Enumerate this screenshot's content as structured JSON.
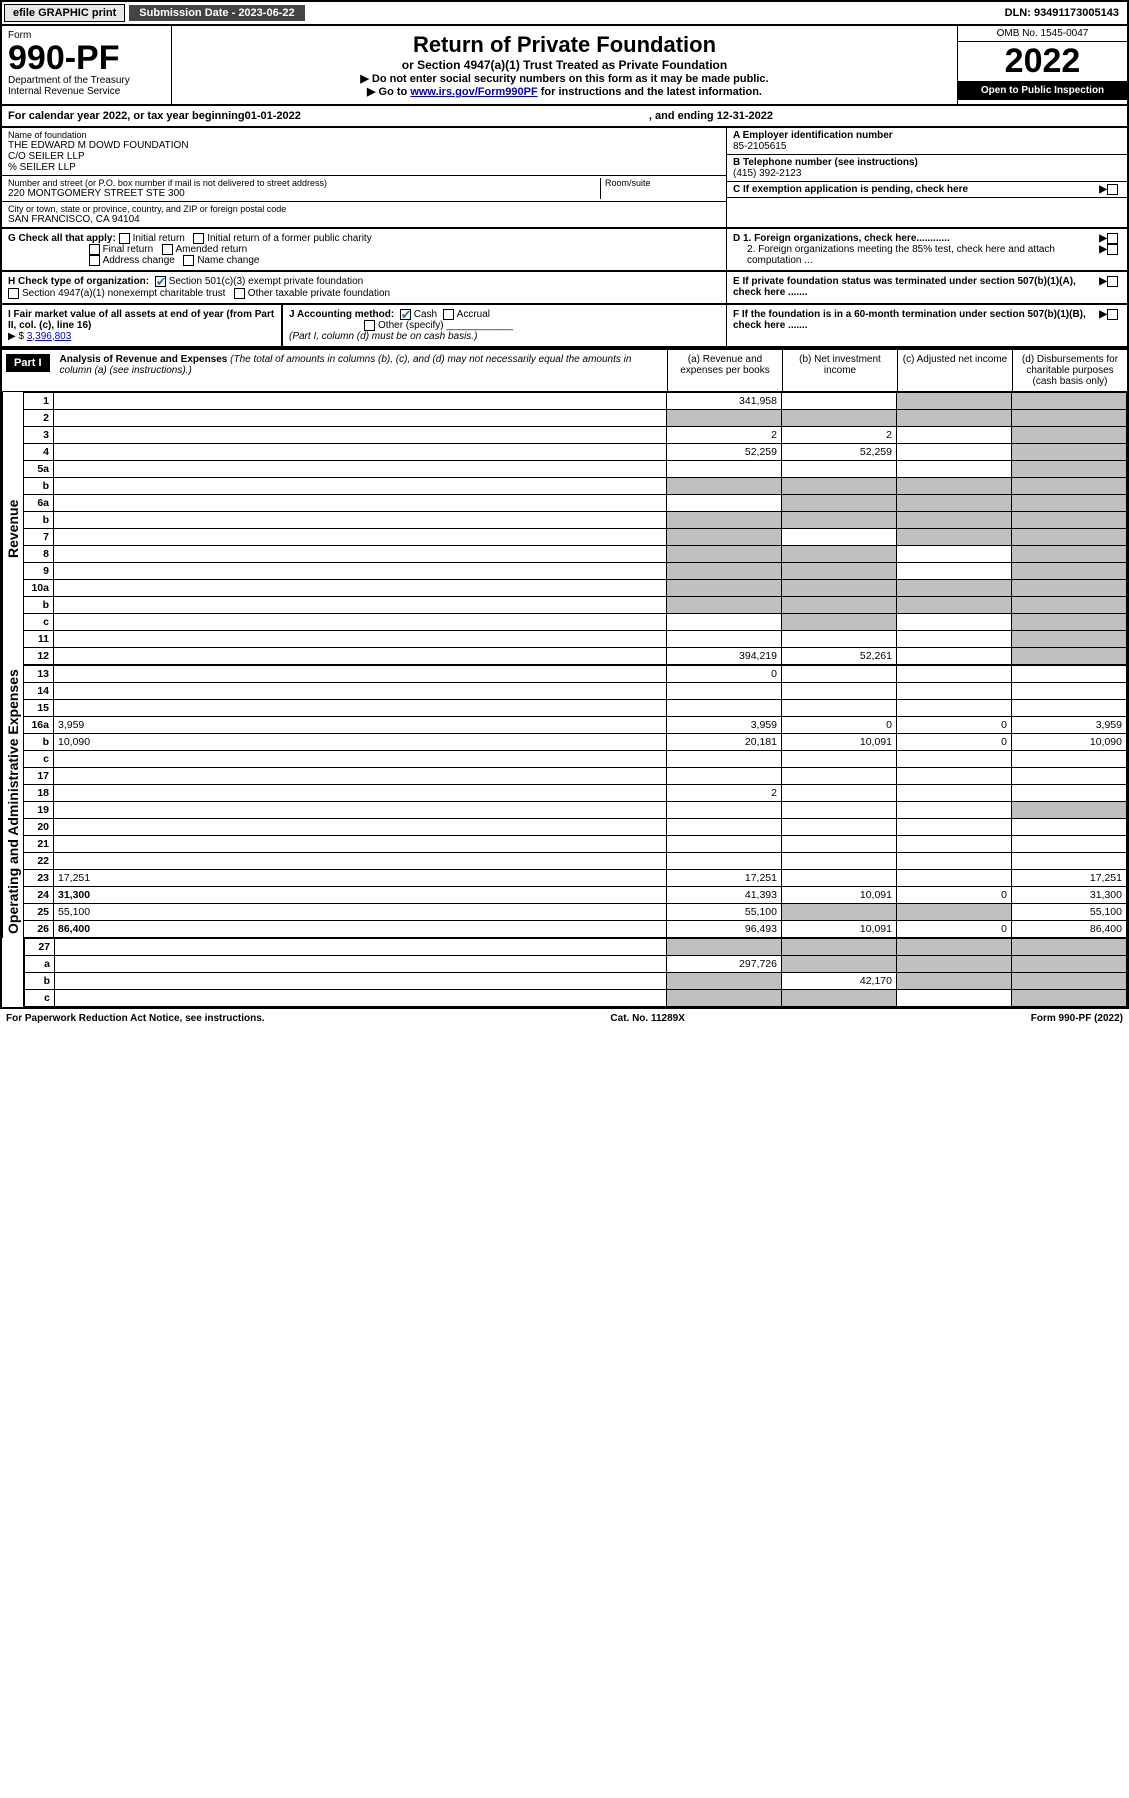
{
  "colors": {
    "black": "#000000",
    "white": "#ffffff",
    "grey_fill": "#bfbfbf",
    "button_bg": "#e8e8e8",
    "dark_bg": "#444444",
    "link": "#0000cc",
    "check_blue": "#2e6db0"
  },
  "topbar": {
    "efile": "efile GRAPHIC print",
    "submission": "Submission Date - 2023-06-22",
    "dln": "DLN: 93491173005143"
  },
  "header": {
    "form_word": "Form",
    "form_number": "990-PF",
    "dept1": "Department of the Treasury",
    "dept2": "Internal Revenue Service",
    "title": "Return of Private Foundation",
    "subtitle": "or Section 4947(a)(1) Trust Treated as Private Foundation",
    "instr1": "▶ Do not enter social security numbers on this form as it may be made public.",
    "instr2_pre": "▶ Go to ",
    "instr2_link": "www.irs.gov/Form990PF",
    "instr2_post": " for instructions and the latest information.",
    "omb": "OMB No. 1545-0047",
    "year": "2022",
    "open": "Open to Public Inspection"
  },
  "cal_year": {
    "prefix": "For calendar year 2022, or tax year beginning ",
    "begin": "01-01-2022",
    "mid": ", and ending ",
    "end": "12-31-2022"
  },
  "info": {
    "name_label": "Name of foundation",
    "name1": "THE EDWARD M DOWD FOUNDATION",
    "name2": "C/O SEILER LLP",
    "name3": "% SEILER LLP",
    "addr_label": "Number and street (or P.O. box number if mail is not delivered to street address)",
    "addr": "220 MONTGOMERY STREET STE 300",
    "room_label": "Room/suite",
    "city_label": "City or town, state or province, country, and ZIP or foreign postal code",
    "city": "SAN FRANCISCO, CA  94104",
    "a_label": "A Employer identification number",
    "a_val": "85-2105615",
    "b_label": "B Telephone number (see instructions)",
    "b_val": "(415) 392-2123",
    "c_label": "C If exemption application is pending, check here"
  },
  "g": {
    "label": "G Check all that apply:",
    "opts": [
      "Initial return",
      "Final return",
      "Address change",
      "Initial return of a former public charity",
      "Amended return",
      "Name change"
    ]
  },
  "d": {
    "d1": "D 1. Foreign organizations, check here............",
    "d2": "2. Foreign organizations meeting the 85% test, check here and attach computation ..."
  },
  "h": {
    "label": "H Check type of organization:",
    "opt1": "Section 501(c)(3) exempt private foundation",
    "opt2": "Section 4947(a)(1) nonexempt charitable trust",
    "opt3": "Other taxable private foundation"
  },
  "e": {
    "text": "E  If private foundation status was terminated under section 507(b)(1)(A), check here ......."
  },
  "i": {
    "label": "I Fair market value of all assets at end of year (from Part II, col. (c), line 16)",
    "arrow": "▶ $",
    "val": "3,396,803"
  },
  "j": {
    "label": "J Accounting method:",
    "cash": "Cash",
    "accrual": "Accrual",
    "other": "Other (specify)",
    "note": "(Part I, column (d) must be on cash basis.)"
  },
  "f": {
    "text": "F  If the foundation is in a 60-month termination under section 507(b)(1)(B), check here ......."
  },
  "part1": {
    "tag": "Part I",
    "title": "Analysis of Revenue and Expenses",
    "title_note": "(The total of amounts in columns (b), (c), and (d) may not necessarily equal the amounts in column (a) (see instructions).)",
    "cols": {
      "a": "(a)  Revenue and expenses per books",
      "b": "(b)  Net investment income",
      "c": "(c)  Adjusted net income",
      "d": "(d)  Disbursements for charitable purposes (cash basis only)"
    }
  },
  "vlabels": {
    "revenue": "Revenue",
    "expenses": "Operating and Administrative Expenses"
  },
  "rows": [
    {
      "n": "1",
      "d": "",
      "a": "341,958",
      "b": "",
      "c": "",
      "grey": [
        "c",
        "d"
      ]
    },
    {
      "n": "2",
      "d": "",
      "a": "",
      "b": "",
      "c": "",
      "grey": [
        "a",
        "b",
        "c",
        "d"
      ]
    },
    {
      "n": "3",
      "d": "",
      "a": "2",
      "b": "2",
      "c": "",
      "grey": [
        "d"
      ]
    },
    {
      "n": "4",
      "d": "",
      "a": "52,259",
      "b": "52,259",
      "c": "",
      "grey": [
        "d"
      ]
    },
    {
      "n": "5a",
      "d": "",
      "a": "",
      "b": "",
      "c": "",
      "grey": [
        "d"
      ]
    },
    {
      "n": "b",
      "d": "",
      "a": "",
      "b": "",
      "c": "",
      "grey": [
        "a",
        "b",
        "c",
        "d"
      ]
    },
    {
      "n": "6a",
      "d": "",
      "a": "",
      "b": "",
      "c": "",
      "grey": [
        "b",
        "c",
        "d"
      ]
    },
    {
      "n": "b",
      "d": "",
      "a": "",
      "b": "",
      "c": "",
      "grey": [
        "a",
        "b",
        "c",
        "d"
      ]
    },
    {
      "n": "7",
      "d": "",
      "a": "",
      "b": "",
      "c": "",
      "grey": [
        "a",
        "c",
        "d"
      ]
    },
    {
      "n": "8",
      "d": "",
      "a": "",
      "b": "",
      "c": "",
      "grey": [
        "a",
        "b",
        "d"
      ]
    },
    {
      "n": "9",
      "d": "",
      "a": "",
      "b": "",
      "c": "",
      "grey": [
        "a",
        "b",
        "d"
      ]
    },
    {
      "n": "10a",
      "d": "",
      "a": "",
      "b": "",
      "c": "",
      "grey": [
        "a",
        "b",
        "c",
        "d"
      ]
    },
    {
      "n": "b",
      "d": "",
      "a": "",
      "b": "",
      "c": "",
      "grey": [
        "a",
        "b",
        "c",
        "d"
      ]
    },
    {
      "n": "c",
      "d": "",
      "a": "",
      "b": "",
      "c": "",
      "grey": [
        "b",
        "d"
      ]
    },
    {
      "n": "11",
      "d": "",
      "a": "",
      "b": "",
      "c": "",
      "grey": [
        "d"
      ]
    },
    {
      "n": "12",
      "d": "",
      "bold": true,
      "a": "394,219",
      "b": "52,261",
      "c": "",
      "grey": [
        "d"
      ]
    }
  ],
  "exp_rows": [
    {
      "n": "13",
      "d": "",
      "a": "0",
      "b": "",
      "c": ""
    },
    {
      "n": "14",
      "d": "",
      "a": "",
      "b": "",
      "c": ""
    },
    {
      "n": "15",
      "d": "",
      "a": "",
      "b": "",
      "c": ""
    },
    {
      "n": "16a",
      "d": "3,959",
      "a": "3,959",
      "b": "0",
      "c": "0"
    },
    {
      "n": "b",
      "d": "10,090",
      "a": "20,181",
      "b": "10,091",
      "c": "0"
    },
    {
      "n": "c",
      "d": "",
      "a": "",
      "b": "",
      "c": ""
    },
    {
      "n": "17",
      "d": "",
      "a": "",
      "b": "",
      "c": ""
    },
    {
      "n": "18",
      "d": "",
      "a": "2",
      "b": "",
      "c": ""
    },
    {
      "n": "19",
      "d": "",
      "a": "",
      "b": "",
      "c": "",
      "grey": [
        "d"
      ]
    },
    {
      "n": "20",
      "d": "",
      "a": "",
      "b": "",
      "c": ""
    },
    {
      "n": "21",
      "d": "",
      "a": "",
      "b": "",
      "c": ""
    },
    {
      "n": "22",
      "d": "",
      "a": "",
      "b": "",
      "c": ""
    },
    {
      "n": "23",
      "d": "17,251",
      "a": "17,251",
      "b": "",
      "c": ""
    },
    {
      "n": "24",
      "d": "31,300",
      "bold": true,
      "a": "41,393",
      "b": "10,091",
      "c": "0"
    },
    {
      "n": "25",
      "d": "55,100",
      "a": "55,100",
      "b": "",
      "c": "",
      "grey": [
        "b",
        "c"
      ]
    },
    {
      "n": "26",
      "d": "86,400",
      "bold": true,
      "a": "96,493",
      "b": "10,091",
      "c": "0"
    }
  ],
  "bottom_rows": [
    {
      "n": "27",
      "d": "",
      "a": "",
      "b": "",
      "c": "",
      "grey": [
        "a",
        "b",
        "c",
        "d"
      ]
    },
    {
      "n": "a",
      "d": "",
      "bold": true,
      "a": "297,726",
      "b": "",
      "c": "",
      "grey": [
        "b",
        "c",
        "d"
      ]
    },
    {
      "n": "b",
      "d": "",
      "bold": true,
      "a": "",
      "b": "42,170",
      "c": "",
      "grey": [
        "a",
        "c",
        "d"
      ]
    },
    {
      "n": "c",
      "d": "",
      "bold": true,
      "a": "",
      "b": "",
      "c": "",
      "grey": [
        "a",
        "b",
        "d"
      ]
    }
  ],
  "footer": {
    "left": "For Paperwork Reduction Act Notice, see instructions.",
    "mid": "Cat. No. 11289X",
    "right": "Form 990-PF (2022)"
  }
}
